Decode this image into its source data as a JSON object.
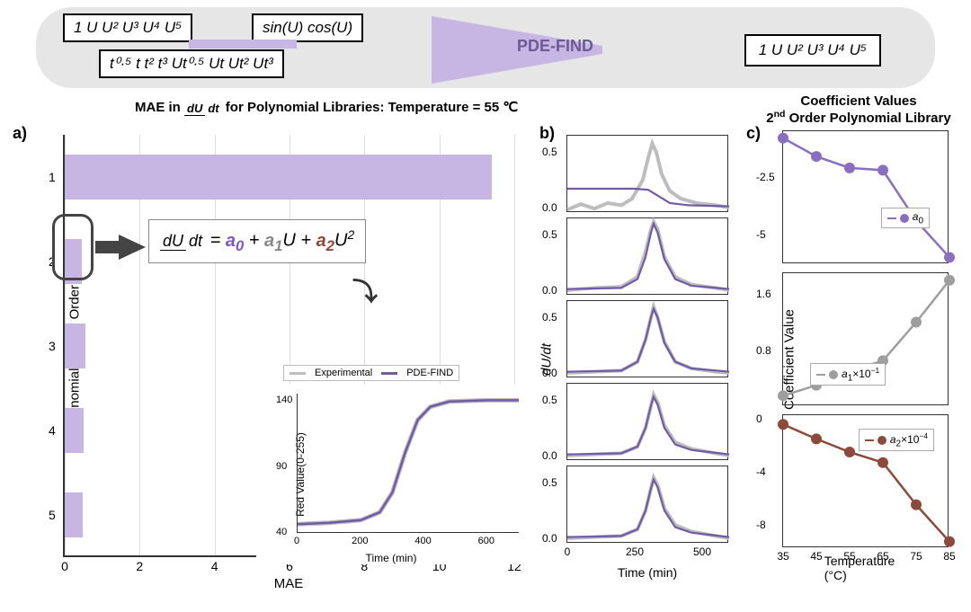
{
  "colors": {
    "bar": "#c7b6e4",
    "purple": "#6f5ba8",
    "gray_series": "#bdbdbd",
    "a0": "#8a6fc1",
    "a1": "#9e9e9e",
    "a2": "#8d4a3a",
    "banner_bg": "#e6e6e6"
  },
  "banner": {
    "libs": {
      "poly": "1  U  U²  U³  U⁴  U⁵",
      "trig": "sin(U) cos(U)",
      "time": "t⁰·⁵ t  t²  t³ Ut⁰·⁵ Ut  Ut²  Ut³"
    },
    "funnel_label": "PDE-FIND",
    "output": "1  U  U²  U³  U⁴  U⁵"
  },
  "titles": {
    "a_html": "MAE in <span class='eq-frac' style='font-size:13px'><span class='num'><i>dU</i></span><span class='den'><i>dt</i></span></span> for Polynomial Libraries: Temperature = 55 ℃",
    "c_html": "Coefficient Values<br>2<sup>nd</sup> Order Polynomial Library"
  },
  "panel_labels": {
    "a": "a)",
    "b": "b)",
    "c": "c)"
  },
  "panel_a": {
    "ylabel": "Polynomial Library Order",
    "xlabel": "MAE",
    "xlim": [
      0,
      12
    ],
    "xtick_step": 2,
    "bars": [
      {
        "order": 1,
        "mae": 11.4
      },
      {
        "order": 2,
        "mae": 0.45
      },
      {
        "order": 3,
        "mae": 0.55
      },
      {
        "order": 4,
        "mae": 0.5
      },
      {
        "order": 5,
        "mae": 0.48
      }
    ],
    "equation_html": "<span class='eq-frac'><span class='num'>dU</span><span class='den'>dt</span></span> = <span class='c0'>a<sub>0</sub></span> + <span class='c1'>a<sub>1</sub></span>U + <span class='c2'>a<sub>2</sub></span>U<sup>2</sup>",
    "inset": {
      "xlabel": "Time (min)",
      "ylabel": "Red Value(0-255)",
      "xlim": [
        0,
        700
      ],
      "ylim": [
        40,
        145
      ],
      "xticks": [
        0,
        200,
        400,
        600
      ],
      "yticks": [
        40,
        90,
        140
      ],
      "legend": [
        {
          "label": "Experimental",
          "color": "#bdbdbd"
        },
        {
          "label": "PDE-FIND",
          "color": "#6f5ba8"
        }
      ],
      "curve": [
        [
          0,
          46
        ],
        [
          100,
          47
        ],
        [
          200,
          49
        ],
        [
          260,
          55
        ],
        [
          300,
          70
        ],
        [
          340,
          100
        ],
        [
          380,
          125
        ],
        [
          420,
          135
        ],
        [
          480,
          139
        ],
        [
          600,
          140
        ],
        [
          700,
          140
        ]
      ]
    }
  },
  "panel_b": {
    "ylabel": "dU/dt",
    "xlabel": "Time (min)",
    "xlim": [
      0,
      600
    ],
    "xticks": [
      0,
      250,
      500
    ],
    "ylim": [
      -0.05,
      0.65
    ],
    "yticks": [
      0.0,
      0.5
    ],
    "rows": [
      {
        "exp": [
          [
            0,
            -0.02
          ],
          [
            50,
            0.03
          ],
          [
            100,
            -0.01
          ],
          [
            150,
            0.04
          ],
          [
            200,
            0.02
          ],
          [
            240,
            0.08
          ],
          [
            280,
            0.25
          ],
          [
            300,
            0.45
          ],
          [
            315,
            0.58
          ],
          [
            330,
            0.5
          ],
          [
            350,
            0.3
          ],
          [
            380,
            0.15
          ],
          [
            420,
            0.08
          ],
          [
            480,
            0.04
          ],
          [
            550,
            0.02
          ],
          [
            600,
            0.0
          ]
        ],
        "fit": [
          [
            0,
            0.17
          ],
          [
            150,
            0.17
          ],
          [
            250,
            0.17
          ],
          [
            300,
            0.16
          ],
          [
            340,
            0.1
          ],
          [
            380,
            0.04
          ],
          [
            450,
            0.02
          ],
          [
            600,
            0.01
          ]
        ]
      },
      {
        "exp": [
          [
            0,
            0.0
          ],
          [
            100,
            0.02
          ],
          [
            200,
            0.03
          ],
          [
            260,
            0.12
          ],
          [
            290,
            0.35
          ],
          [
            310,
            0.55
          ],
          [
            320,
            0.62
          ],
          [
            335,
            0.55
          ],
          [
            360,
            0.3
          ],
          [
            400,
            0.12
          ],
          [
            460,
            0.05
          ],
          [
            550,
            0.02
          ],
          [
            600,
            0.0
          ]
        ],
        "fit": [
          [
            0,
            0.01
          ],
          [
            200,
            0.02
          ],
          [
            260,
            0.1
          ],
          [
            290,
            0.3
          ],
          [
            310,
            0.52
          ],
          [
            320,
            0.6
          ],
          [
            335,
            0.52
          ],
          [
            360,
            0.28
          ],
          [
            400,
            0.1
          ],
          [
            460,
            0.04
          ],
          [
            600,
            0.01
          ]
        ]
      },
      {
        "exp": [
          [
            0,
            0.0
          ],
          [
            100,
            0.01
          ],
          [
            200,
            0.02
          ],
          [
            260,
            0.1
          ],
          [
            290,
            0.3
          ],
          [
            310,
            0.5
          ],
          [
            320,
            0.6
          ],
          [
            335,
            0.5
          ],
          [
            360,
            0.28
          ],
          [
            400,
            0.1
          ],
          [
            460,
            0.04
          ],
          [
            550,
            0.01
          ],
          [
            600,
            0.0
          ]
        ],
        "fit": [
          [
            0,
            0.01
          ],
          [
            200,
            0.02
          ],
          [
            260,
            0.1
          ],
          [
            290,
            0.3
          ],
          [
            310,
            0.5
          ],
          [
            320,
            0.58
          ],
          [
            335,
            0.5
          ],
          [
            360,
            0.27
          ],
          [
            400,
            0.1
          ],
          [
            460,
            0.04
          ],
          [
            600,
            0.01
          ]
        ]
      },
      {
        "exp": [
          [
            0,
            0.0
          ],
          [
            100,
            0.01
          ],
          [
            200,
            0.02
          ],
          [
            260,
            0.08
          ],
          [
            290,
            0.25
          ],
          [
            310,
            0.45
          ],
          [
            320,
            0.55
          ],
          [
            335,
            0.48
          ],
          [
            360,
            0.27
          ],
          [
            400,
            0.12
          ],
          [
            460,
            0.06
          ],
          [
            550,
            0.02
          ],
          [
            600,
            0.0
          ]
        ],
        "fit": [
          [
            0,
            0.01
          ],
          [
            200,
            0.02
          ],
          [
            260,
            0.08
          ],
          [
            290,
            0.25
          ],
          [
            310,
            0.45
          ],
          [
            320,
            0.53
          ],
          [
            335,
            0.46
          ],
          [
            360,
            0.25
          ],
          [
            400,
            0.1
          ],
          [
            460,
            0.05
          ],
          [
            600,
            0.01
          ]
        ]
      },
      {
        "exp": [
          [
            0,
            0.0
          ],
          [
            100,
            0.01
          ],
          [
            200,
            0.02
          ],
          [
            260,
            0.08
          ],
          [
            290,
            0.25
          ],
          [
            310,
            0.45
          ],
          [
            320,
            0.55
          ],
          [
            335,
            0.48
          ],
          [
            360,
            0.27
          ],
          [
            400,
            0.12
          ],
          [
            460,
            0.06
          ],
          [
            550,
            0.02
          ],
          [
            600,
            0.0
          ]
        ],
        "fit": [
          [
            0,
            0.01
          ],
          [
            200,
            0.02
          ],
          [
            260,
            0.08
          ],
          [
            290,
            0.25
          ],
          [
            310,
            0.45
          ],
          [
            320,
            0.53
          ],
          [
            335,
            0.46
          ],
          [
            360,
            0.25
          ],
          [
            400,
            0.1
          ],
          [
            460,
            0.05
          ],
          [
            600,
            0.01
          ]
        ]
      }
    ]
  },
  "panel_c": {
    "ylabel": "Coefficient Value",
    "xlabel": "Temperature (°C)",
    "x": [
      35,
      45,
      55,
      65,
      75,
      85
    ],
    "series": [
      {
        "key": "a0",
        "color": "#8a6fc1",
        "label_html": "<i>a</i><sub>0</sub>",
        "y": [
          -0.8,
          -1.6,
          -2.1,
          -2.2,
          -4.4,
          -6.0
        ],
        "yticks": [
          -2.5,
          -5.0
        ],
        "ylim": [
          -6.3,
          -0.5
        ],
        "legend_pos": {
          "right": 20,
          "top": 85
        }
      },
      {
        "key": "a1",
        "color": "#9e9e9e",
        "label_html": "<i>a</i><sub>1</sub>×10<sup>−1</sup>",
        "y": [
          0.15,
          0.3,
          0.5,
          0.65,
          1.2,
          1.8
        ],
        "yticks": [
          0.8,
          1.6
        ],
        "ylim": [
          0.0,
          1.9
        ],
        "legend_pos": {
          "left": 30,
          "top": 100
        }
      },
      {
        "key": "a2",
        "color": "#8d4a3a",
        "label_html": "<i>a</i><sub>2</sub>×10<sup>−4</sup>",
        "y": [
          -0.4,
          -1.5,
          -2.5,
          -3.3,
          -6.5,
          -9.3
        ],
        "yticks": [
          0,
          -4,
          -8
        ],
        "ylim": [
          -9.8,
          0.3
        ],
        "legend_pos": {
          "right": 15,
          "top": 15
        }
      }
    ]
  }
}
